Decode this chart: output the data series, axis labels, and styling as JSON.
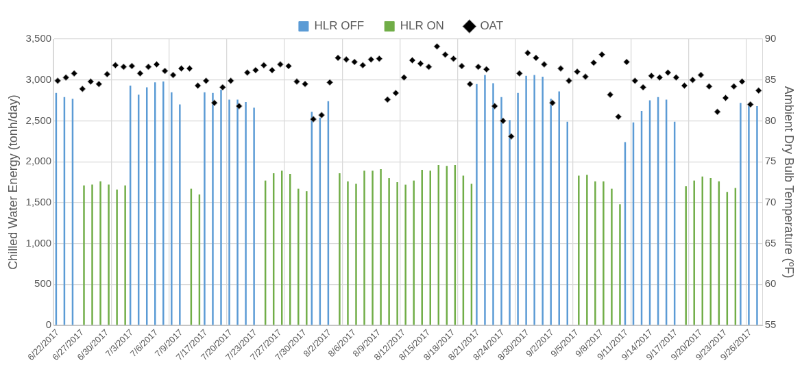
{
  "chart_data": {
    "type": "bar",
    "ylabel": "Chilled Water Energy (tonh/day)",
    "y2label": "Ambient Dry Bulb Temperature (ºF)",
    "categories": [
      "6/22/2017",
      null,
      null,
      "6/27/2017",
      null,
      null,
      "6/30/2017",
      null,
      null,
      "7/3/2017",
      null,
      null,
      "7/6/2017",
      null,
      null,
      "7/9/2017",
      null,
      null,
      "7/17/2017",
      null,
      null,
      "7/20/2017",
      null,
      null,
      "7/23/2017",
      null,
      null,
      "7/27/2017",
      null,
      null,
      "7/30/2017",
      null,
      null,
      "8/2/2017",
      null,
      null,
      "8/6/2017",
      null,
      null,
      "8/9/2017",
      null,
      null,
      "8/12/2017",
      null,
      null,
      "8/15/2017",
      null,
      null,
      "8/18/2017",
      null,
      null,
      "8/21/2017",
      null,
      null,
      "8/24/2017",
      null,
      null,
      "8/30/2017",
      null,
      null,
      "9/2/2017",
      null,
      null,
      "9/5/2017",
      null,
      null,
      "9/8/2017",
      null,
      null,
      "9/11/2017",
      null,
      null,
      "9/14/2017",
      null,
      null,
      "9/17/2017",
      null,
      null,
      "9/20/2017",
      null,
      null,
      "9/23/2017",
      null,
      null,
      "9/26/2017",
      null
    ],
    "series": [
      {
        "name": "HLR OFF",
        "color": "#5b9bd5",
        "values": [
          2840,
          2790,
          2770,
          null,
          null,
          null,
          null,
          null,
          null,
          2930,
          2820,
          2910,
          2970,
          2980,
          2850,
          2700,
          null,
          null,
          2850,
          2840,
          2880,
          2760,
          2760,
          2730,
          2660,
          null,
          null,
          null,
          null,
          null,
          null,
          2610,
          2540,
          2740,
          null,
          null,
          null,
          null,
          null,
          null,
          null,
          null,
          null,
          null,
          null,
          null,
          null,
          null,
          null,
          null,
          null,
          2950,
          3060,
          2960,
          2790,
          2510,
          2840,
          3050,
          3060,
          3040,
          2770,
          2860,
          2490,
          null,
          null,
          null,
          null,
          null,
          null,
          2240,
          2480,
          2620,
          2750,
          2790,
          2760,
          2490,
          null,
          null,
          null,
          null,
          null,
          null,
          null,
          2720,
          2690,
          2680
        ]
      },
      {
        "name": "HLR ON",
        "color": "#70ad47",
        "values": [
          null,
          null,
          null,
          1710,
          1720,
          1760,
          1720,
          1660,
          1710,
          null,
          null,
          null,
          null,
          null,
          null,
          null,
          1670,
          1600,
          null,
          null,
          null,
          null,
          null,
          null,
          null,
          1770,
          1860,
          1890,
          1850,
          1670,
          1640,
          null,
          null,
          null,
          1860,
          1760,
          1730,
          1890,
          1890,
          1910,
          1800,
          1750,
          1720,
          1770,
          1900,
          1890,
          1960,
          1950,
          1960,
          1830,
          1730,
          null,
          null,
          null,
          null,
          null,
          null,
          null,
          null,
          null,
          null,
          null,
          null,
          1830,
          1840,
          1760,
          1760,
          1670,
          1480,
          null,
          null,
          null,
          null,
          null,
          null,
          null,
          1700,
          1770,
          1820,
          1800,
          1760,
          1630,
          1680,
          null,
          null,
          null
        ]
      },
      {
        "name": "OAT",
        "type": "scatter",
        "axis": "y2",
        "color": "#000000",
        "marker": "diamond",
        "values": [
          84.9,
          85.3,
          85.8,
          83.9,
          84.8,
          84.5,
          85.7,
          86.8,
          86.6,
          86.7,
          85.8,
          86.6,
          86.9,
          86.1,
          85.6,
          86.4,
          86.4,
          84.3,
          84.9,
          82.2,
          84.1,
          84.9,
          81.8,
          85.9,
          86.2,
          86.8,
          86.2,
          86.9,
          86.7,
          84.8,
          84.5,
          80.2,
          80.7,
          84.7,
          87.7,
          87.5,
          87.2,
          86.8,
          87.5,
          87.6,
          82.6,
          83.4,
          85.3,
          87.4,
          87.0,
          86.6,
          89.1,
          88.1,
          87.6,
          86.7,
          84.5,
          86.6,
          86.3,
          81.8,
          80.0,
          78.1,
          85.8,
          88.3,
          87.7,
          86.9,
          82.2,
          86.4,
          84.9,
          86.0,
          85.4,
          87.1,
          88.1,
          83.2,
          80.5,
          87.2,
          84.9,
          84.1,
          85.5,
          85.3,
          85.9,
          85.3,
          84.3,
          85.0,
          85.6,
          84.2,
          81.1,
          82.8,
          84.2,
          84.8,
          82.0,
          83.7
        ]
      }
    ],
    "ylim": [
      0,
      3500
    ],
    "yticks": [
      0,
      500,
      {
        "value": 1000,
        "label": "1,000"
      },
      {
        "value": 1500,
        "label": "1,500"
      },
      {
        "value": 2000,
        "label": "2,000"
      },
      {
        "value": 2500,
        "label": "2,500"
      },
      {
        "value": 3000,
        "label": "3,000"
      },
      {
        "value": 3500,
        "label": "3,500"
      }
    ],
    "y2lim": [
      55,
      90
    ],
    "y2ticks": [
      55,
      60,
      65,
      70,
      75,
      80,
      85,
      90
    ],
    "grid": true,
    "legend": "top"
  }
}
